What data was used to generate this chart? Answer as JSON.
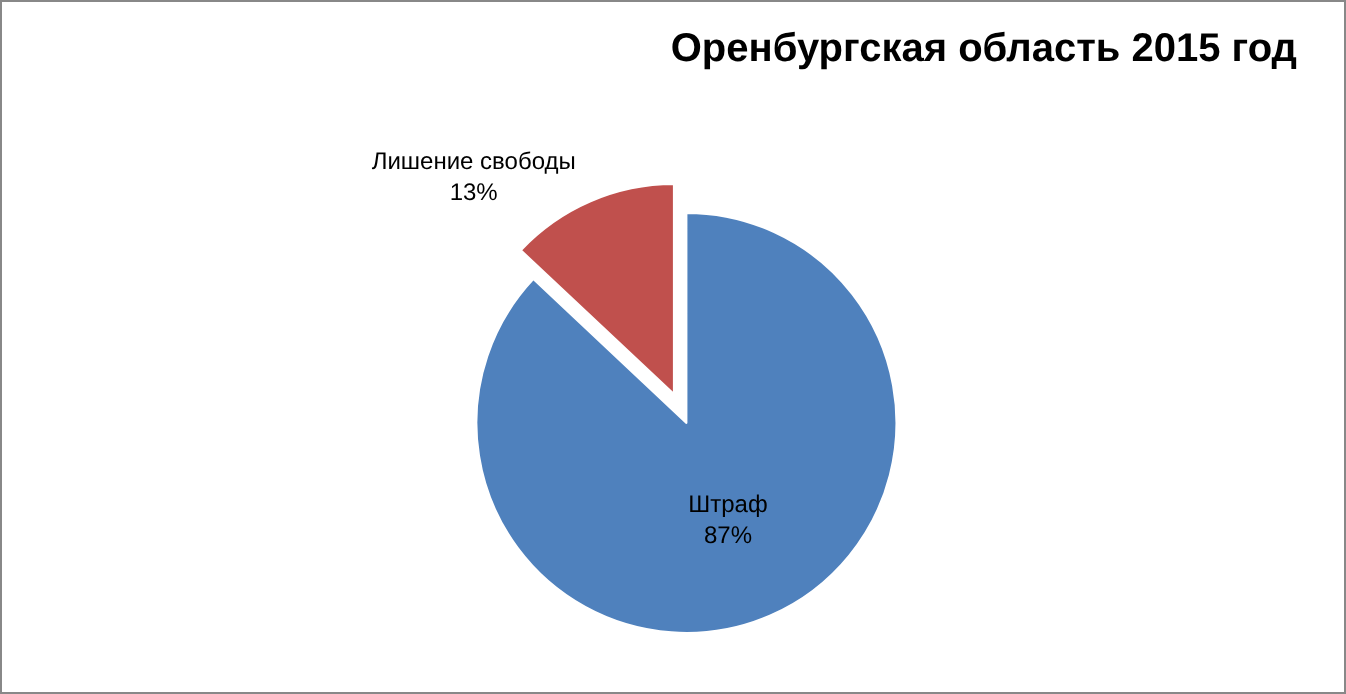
{
  "chart_data": {
    "type": "pie",
    "title": "Оренбургская область 2015 год",
    "categories": [
      "Штраф",
      "Лишение свободы"
    ],
    "values": [
      87,
      13
    ],
    "value_labels": [
      "87%",
      "13%"
    ],
    "colors": [
      "#4f81bd",
      "#c0504d"
    ],
    "legend": false
  }
}
